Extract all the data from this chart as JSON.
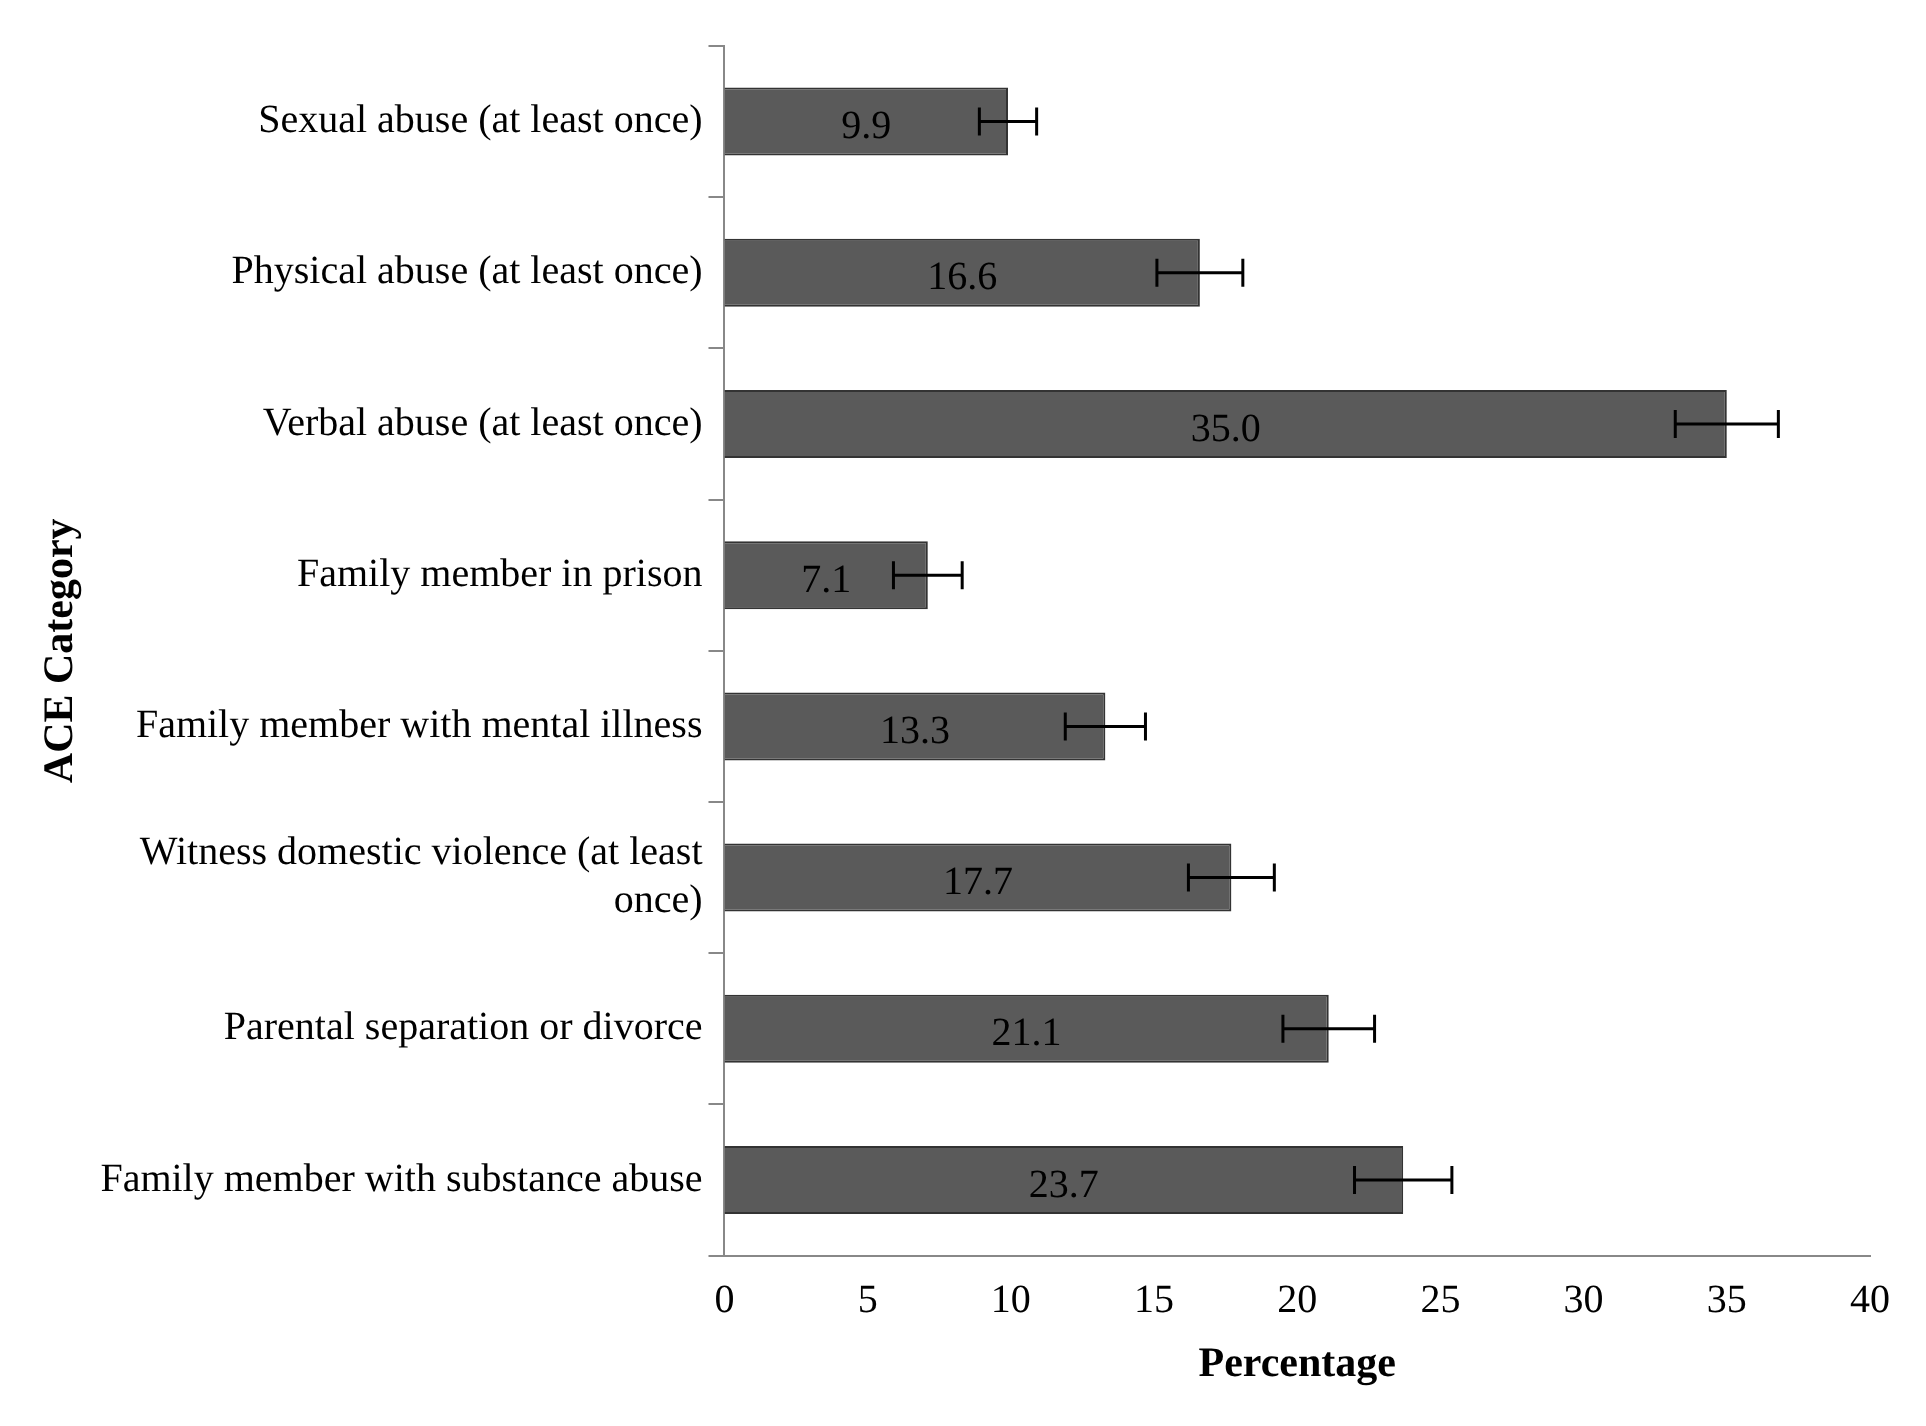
{
  "chart_data": {
    "type": "bar",
    "orientation": "horizontal",
    "xlabel": "Percentage",
    "ylabel": "ACE Category",
    "categories": [
      "Sexual abuse (at least once)",
      "Physical abuse (at least once)",
      "Verbal abuse (at least once)",
      "Family member in prison",
      "Family member with mental illness",
      "Witness domestic violence (at least once)",
      "Parental separation or divorce",
      "Family member with substance abuse"
    ],
    "values": [
      9.9,
      16.6,
      35.0,
      7.1,
      13.3,
      17.7,
      21.1,
      23.7
    ],
    "errors": [
      1.0,
      1.5,
      1.8,
      1.2,
      1.4,
      1.5,
      1.6,
      1.7
    ],
    "color": "#5a5a5a",
    "xlim": [
      0,
      40
    ],
    "xticks": [
      0,
      5,
      10,
      15,
      20,
      25,
      30,
      35,
      40
    ],
    "value_labels": [
      "9.9",
      "16.6",
      "35.0",
      "7.1",
      "13.3",
      "17.7",
      "21.1",
      "23.7"
    ],
    "grid": false,
    "legend": false
  }
}
